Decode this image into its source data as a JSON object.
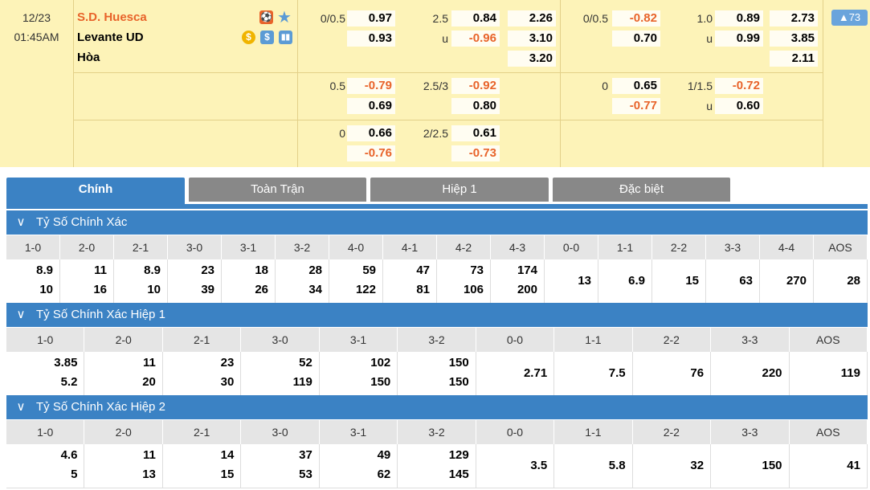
{
  "match": {
    "date": "12/23",
    "time": "01:45AM",
    "home": "S.D. Huesca",
    "away": "Levante UD",
    "draw": "Hòa",
    "more_count": "73",
    "full": [
      {
        "hcap": "0/0.5",
        "h1": "0.97",
        "h2": "0.93",
        "ou": "2.5",
        "ou_u": "u",
        "o1": "0.84",
        "o2": "-0.96",
        "x1": "2.26",
        "x2": "3.10",
        "x3": "3.20"
      },
      {
        "hcap": "0.5",
        "h1": "-0.79",
        "h2": "0.69",
        "ou": "2.5/3",
        "o1": "-0.92",
        "o2": "0.80"
      },
      {
        "hcap": "0",
        "h1": "0.66",
        "h2": "-0.76",
        "ou": "2/2.5",
        "o1": "0.61",
        "o2": "-0.73"
      }
    ],
    "half": [
      {
        "hcap": "0/0.5",
        "h1": "-0.82",
        "h2": "0.70",
        "ou": "1.0",
        "ou_u": "u",
        "o1": "0.89",
        "o2": "0.99",
        "x1": "2.73",
        "x2": "3.85",
        "x3": "2.11"
      },
      {
        "hcap": "0",
        "h1": "0.65",
        "h2": "-0.77",
        "ou": "1/1.5",
        "ou_u": "u",
        "o1": "-0.72",
        "o2": "0.60"
      }
    ]
  },
  "tabs": [
    "Chính",
    "Toàn Trận",
    "Hiệp 1",
    "Đặc biệt"
  ],
  "sections": [
    {
      "title": "Tỷ Số Chính Xác",
      "cols": [
        "1-0",
        "2-0",
        "2-1",
        "3-0",
        "3-1",
        "3-2",
        "4-0",
        "4-1",
        "4-2",
        "4-3",
        "0-0",
        "1-1",
        "2-2",
        "3-3",
        "4-4",
        "AOS"
      ],
      "vals": [
        [
          "8.9",
          "10"
        ],
        [
          "11",
          "16"
        ],
        [
          "8.9",
          "10"
        ],
        [
          "23",
          "39"
        ],
        [
          "18",
          "26"
        ],
        [
          "28",
          "34"
        ],
        [
          "59",
          "122"
        ],
        [
          "47",
          "81"
        ],
        [
          "73",
          "106"
        ],
        [
          "174",
          "200"
        ],
        [
          "13"
        ],
        [
          "6.9"
        ],
        [
          "15"
        ],
        [
          "63"
        ],
        [
          "270"
        ],
        [
          "28"
        ]
      ]
    },
    {
      "title": "Tỷ Số Chính Xác Hiệp 1",
      "cols": [
        "1-0",
        "2-0",
        "2-1",
        "3-0",
        "3-1",
        "3-2",
        "0-0",
        "1-1",
        "2-2",
        "3-3",
        "AOS"
      ],
      "vals": [
        [
          "3.85",
          "5.2"
        ],
        [
          "11",
          "20"
        ],
        [
          "23",
          "30"
        ],
        [
          "52",
          "119"
        ],
        [
          "102",
          "150"
        ],
        [
          "150",
          "150"
        ],
        [
          "2.71"
        ],
        [
          "7.5"
        ],
        [
          "76"
        ],
        [
          "220"
        ],
        [
          "119"
        ]
      ]
    },
    {
      "title": "Tỷ Số Chính Xác Hiệp 2",
      "cols": [
        "1-0",
        "2-0",
        "2-1",
        "3-0",
        "3-1",
        "3-2",
        "0-0",
        "1-1",
        "2-2",
        "3-3",
        "AOS"
      ],
      "vals": [
        [
          "4.6",
          "5"
        ],
        [
          "11",
          "13"
        ],
        [
          "14",
          "15"
        ],
        [
          "37",
          "53"
        ],
        [
          "49",
          "62"
        ],
        [
          "129",
          "145"
        ],
        [
          "3.5"
        ],
        [
          "5.8"
        ],
        [
          "32"
        ],
        [
          "150"
        ],
        [
          "41"
        ]
      ]
    }
  ],
  "colors": {
    "accent": "#3b82c4",
    "negative": "#e8632a",
    "row_bg": "#fdf3b8"
  }
}
